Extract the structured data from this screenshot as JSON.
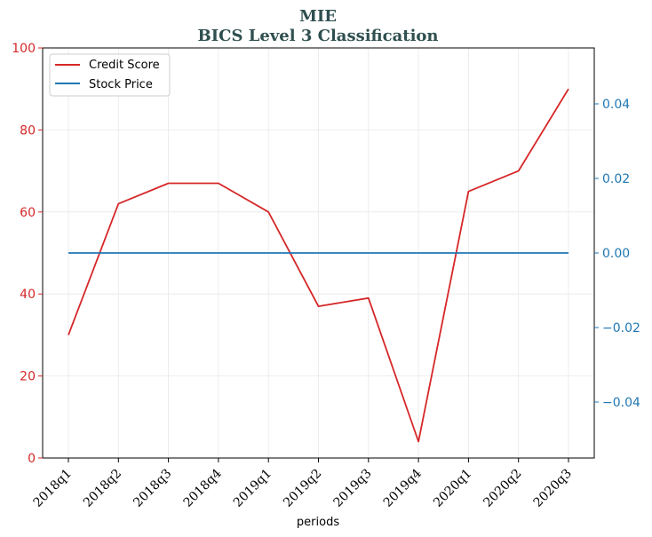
{
  "chart_data": {
    "type": "line",
    "title": "MIE",
    "subtitle": "BICS Level 3 Classification",
    "xlabel": "periods",
    "categories": [
      "2018q1",
      "2018q2",
      "2018q3",
      "2018q4",
      "2019q1",
      "2019q2",
      "2019q3",
      "2019q4",
      "2020q1",
      "2020q2",
      "2020q3"
    ],
    "series": [
      {
        "name": "Credit Score",
        "axis": "left",
        "color": "#d62728",
        "values": [
          30,
          62,
          67,
          67,
          60,
          37,
          39,
          4,
          65,
          70,
          90
        ]
      },
      {
        "name": "Stock Price",
        "axis": "right",
        "color": "#1f77b4",
        "values": [
          0,
          0,
          0,
          0,
          0,
          0,
          0,
          0,
          0,
          0,
          0
        ]
      }
    ],
    "y_left": {
      "lim": [
        0,
        100
      ],
      "ticks": [
        0,
        20,
        40,
        60,
        80,
        100
      ],
      "tick_labels": [
        "0",
        "20",
        "40",
        "60",
        "80",
        "100"
      ],
      "color": "#d62728"
    },
    "y_right": {
      "lim": [
        -0.055,
        0.055
      ],
      "ticks": [
        -0.04,
        -0.02,
        0.0,
        0.02,
        0.04
      ],
      "tick_labels": [
        "−0.04",
        "−0.02",
        "0.00",
        "0.02",
        "0.04"
      ],
      "color": "#1f77b4"
    },
    "grid": true,
    "legend_position": "top-left"
  }
}
